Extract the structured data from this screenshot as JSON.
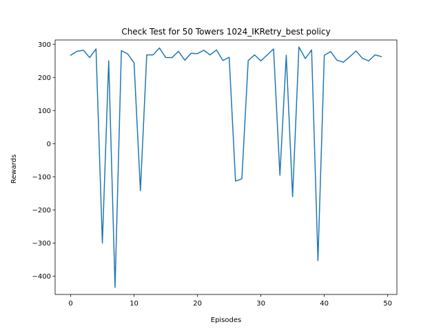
{
  "chart_data": {
    "type": "line",
    "title": "Check Test for 50 Towers 1024_IKRetry_best policy",
    "xlabel": "Episodes",
    "ylabel": "Rewards",
    "xlim": [
      -2.45,
      51.45
    ],
    "ylim": [
      -455,
      313
    ],
    "xticks": [
      0,
      10,
      20,
      30,
      40,
      50
    ],
    "yticks": [
      -400,
      -300,
      -200,
      -100,
      0,
      100,
      200,
      300
    ],
    "xtick_labels": [
      "0",
      "10",
      "20",
      "30",
      "40",
      "50"
    ],
    "ytick_labels": [
      "−400",
      "−300",
      "−200",
      "−100",
      "0",
      "100",
      "200",
      "300"
    ],
    "grid": false,
    "series": [
      {
        "color": "#1f77b4",
        "x": [
          0,
          1,
          2,
          3,
          4,
          5,
          6,
          7,
          8,
          9,
          10,
          11,
          12,
          13,
          14,
          15,
          16,
          17,
          18,
          19,
          20,
          21,
          22,
          23,
          24,
          25,
          26,
          27,
          28,
          29,
          30,
          31,
          32,
          33,
          34,
          35,
          36,
          37,
          38,
          39,
          40,
          41,
          42,
          43,
          44,
          45,
          46,
          47,
          48,
          49
        ],
        "values": [
          267,
          279,
          282,
          260,
          286,
          -300,
          250,
          -434,
          281,
          271,
          244,
          -142,
          268,
          268,
          289,
          260,
          260,
          279,
          252,
          273,
          272,
          282,
          268,
          283,
          251,
          261,
          -113,
          -106,
          251,
          268,
          250,
          268,
          286,
          -95,
          267,
          -160,
          292,
          257,
          283,
          -353,
          267,
          278,
          252,
          246,
          262,
          280,
          258,
          250,
          268,
          263
        ]
      }
    ]
  }
}
